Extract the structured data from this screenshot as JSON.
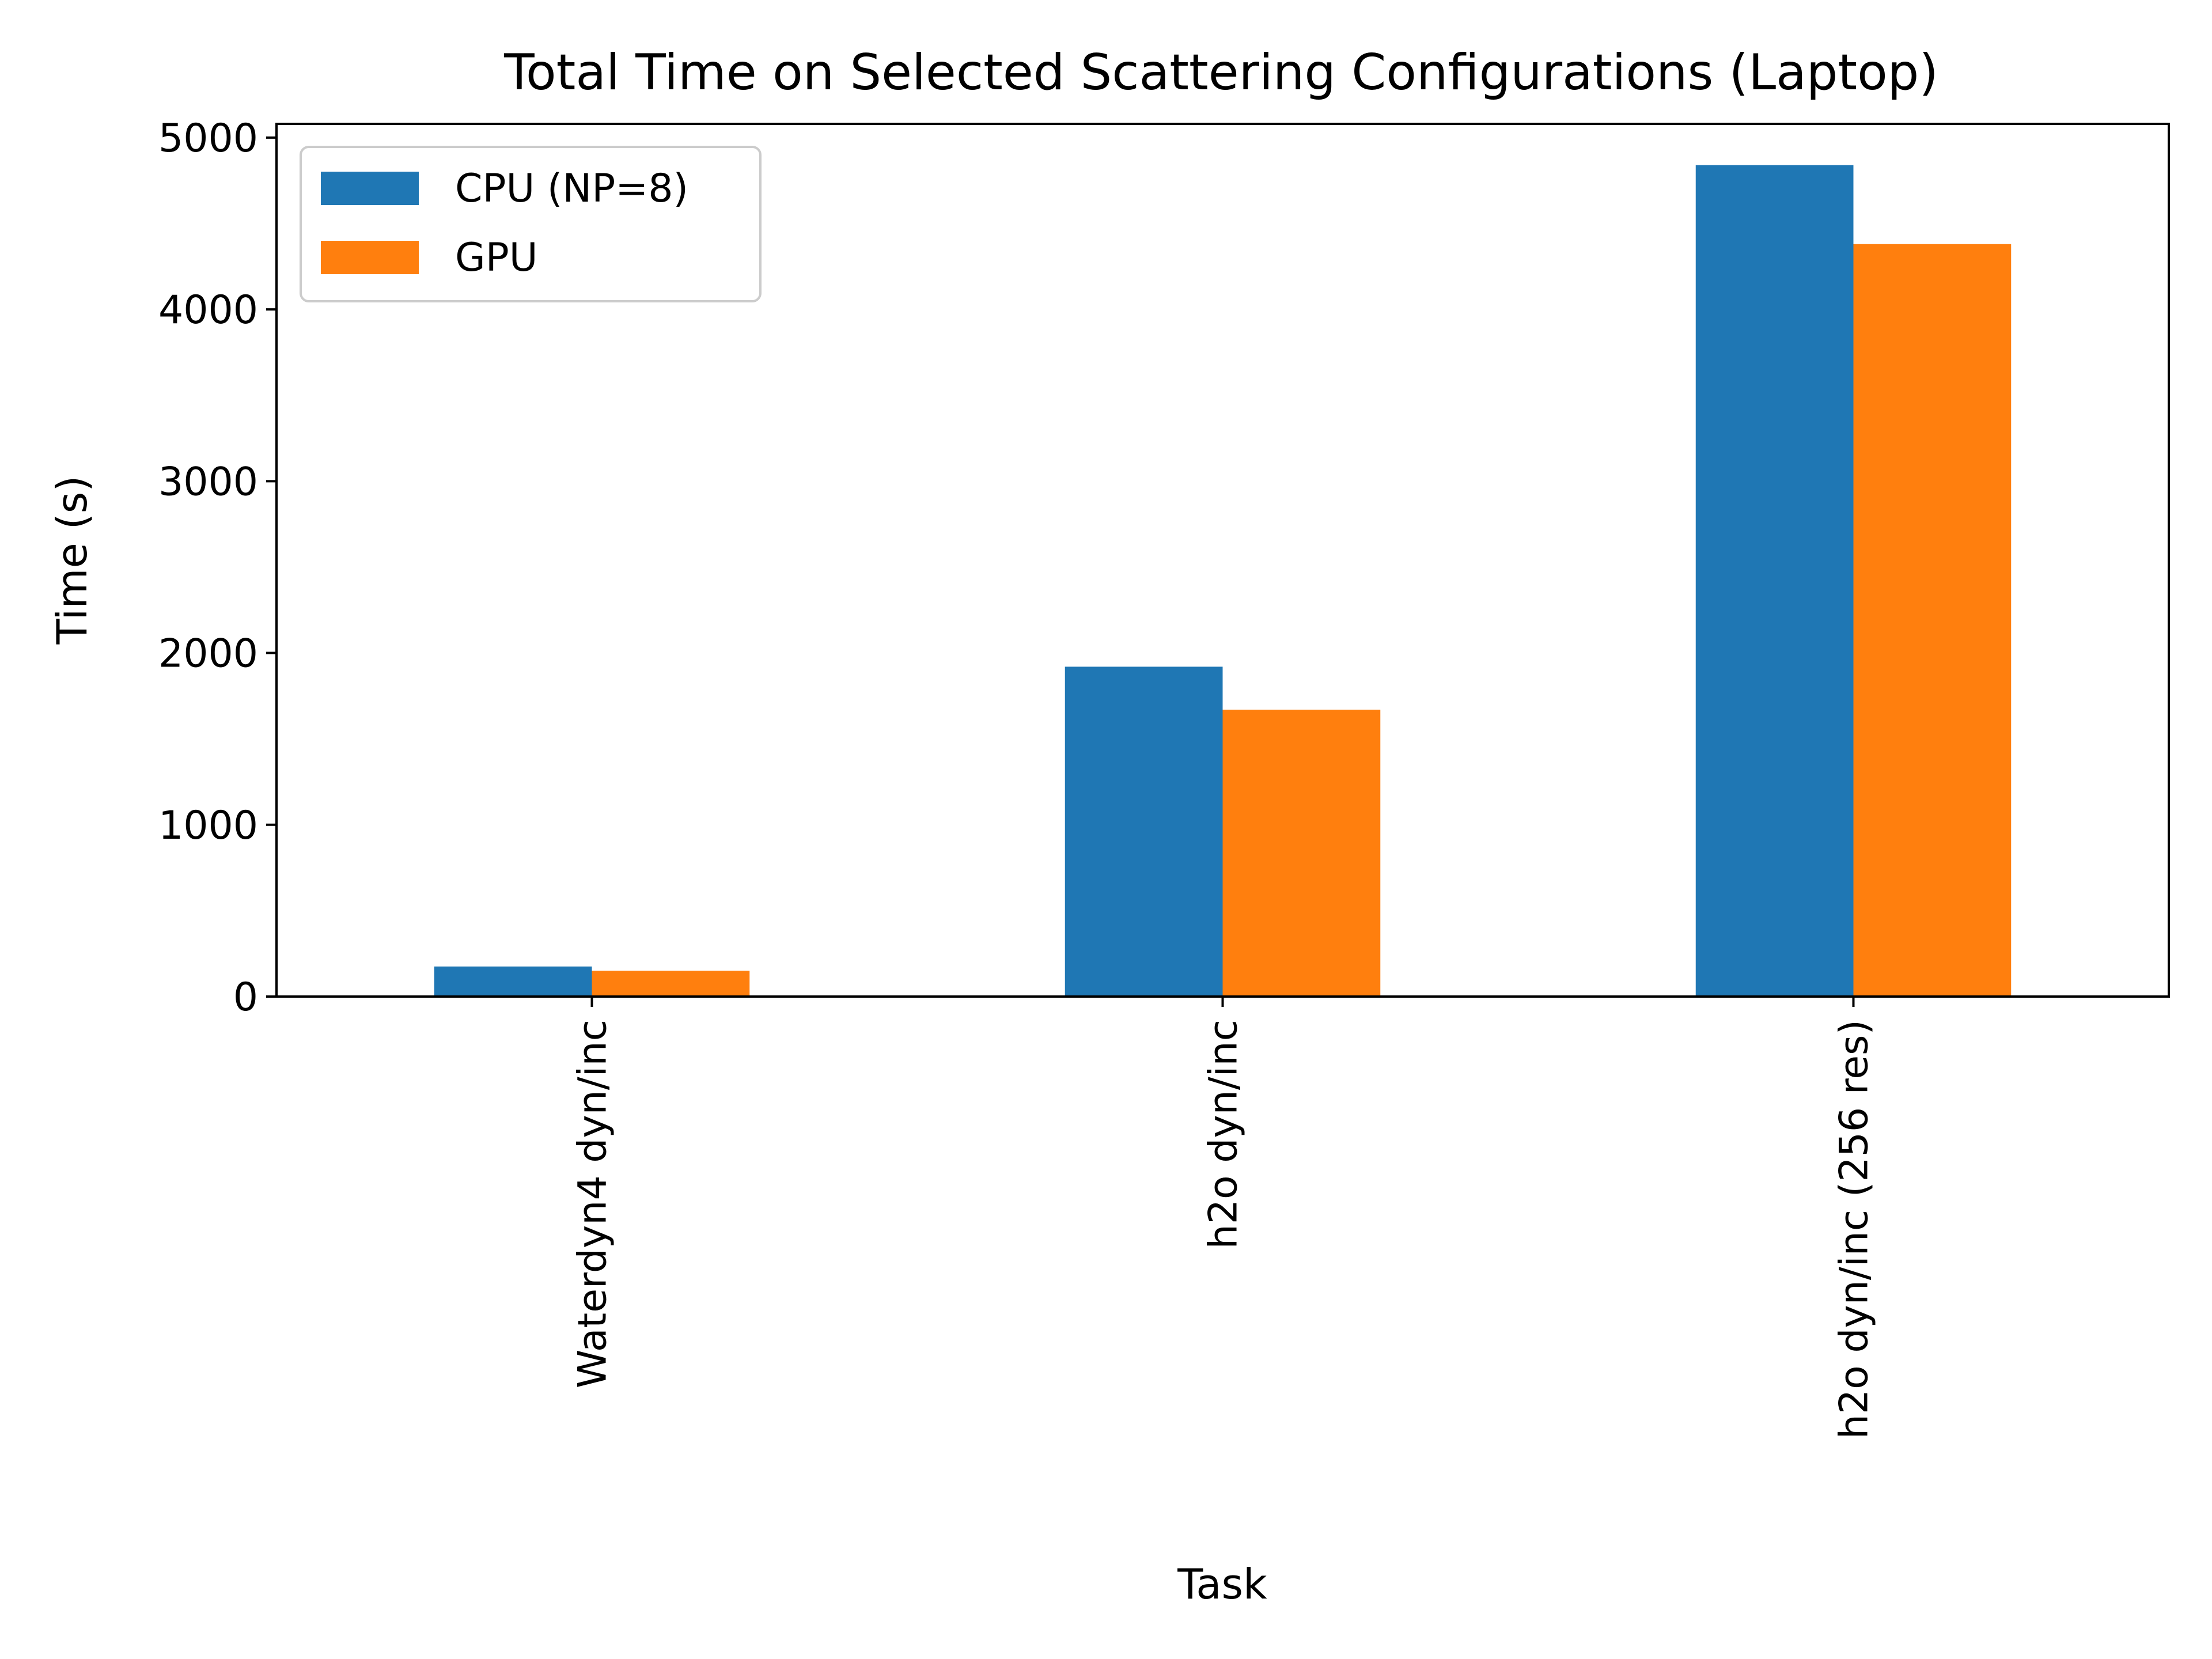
{
  "chart_data": {
    "type": "bar",
    "title": "Total Time on Selected Scattering Configurations (Laptop)",
    "xlabel": "Task",
    "ylabel": "Time (s)",
    "categories": [
      "Waterdyn4 dyn/inc",
      "h2o dyn/inc",
      "h2o dyn/inc (256 res)"
    ],
    "series": [
      {
        "name": "CPU (NP=8)",
        "values": [
          175,
          1920,
          4840
        ],
        "color": "#1f77b4"
      },
      {
        "name": "GPU",
        "values": [
          150,
          1670,
          4380
        ],
        "color": "#ff7f0e"
      }
    ],
    "ylim": [
      0,
      5080
    ],
    "yticks": [
      0,
      1000,
      2000,
      3000,
      4000,
      5000
    ],
    "legend_position": "top-left",
    "grid": false
  }
}
